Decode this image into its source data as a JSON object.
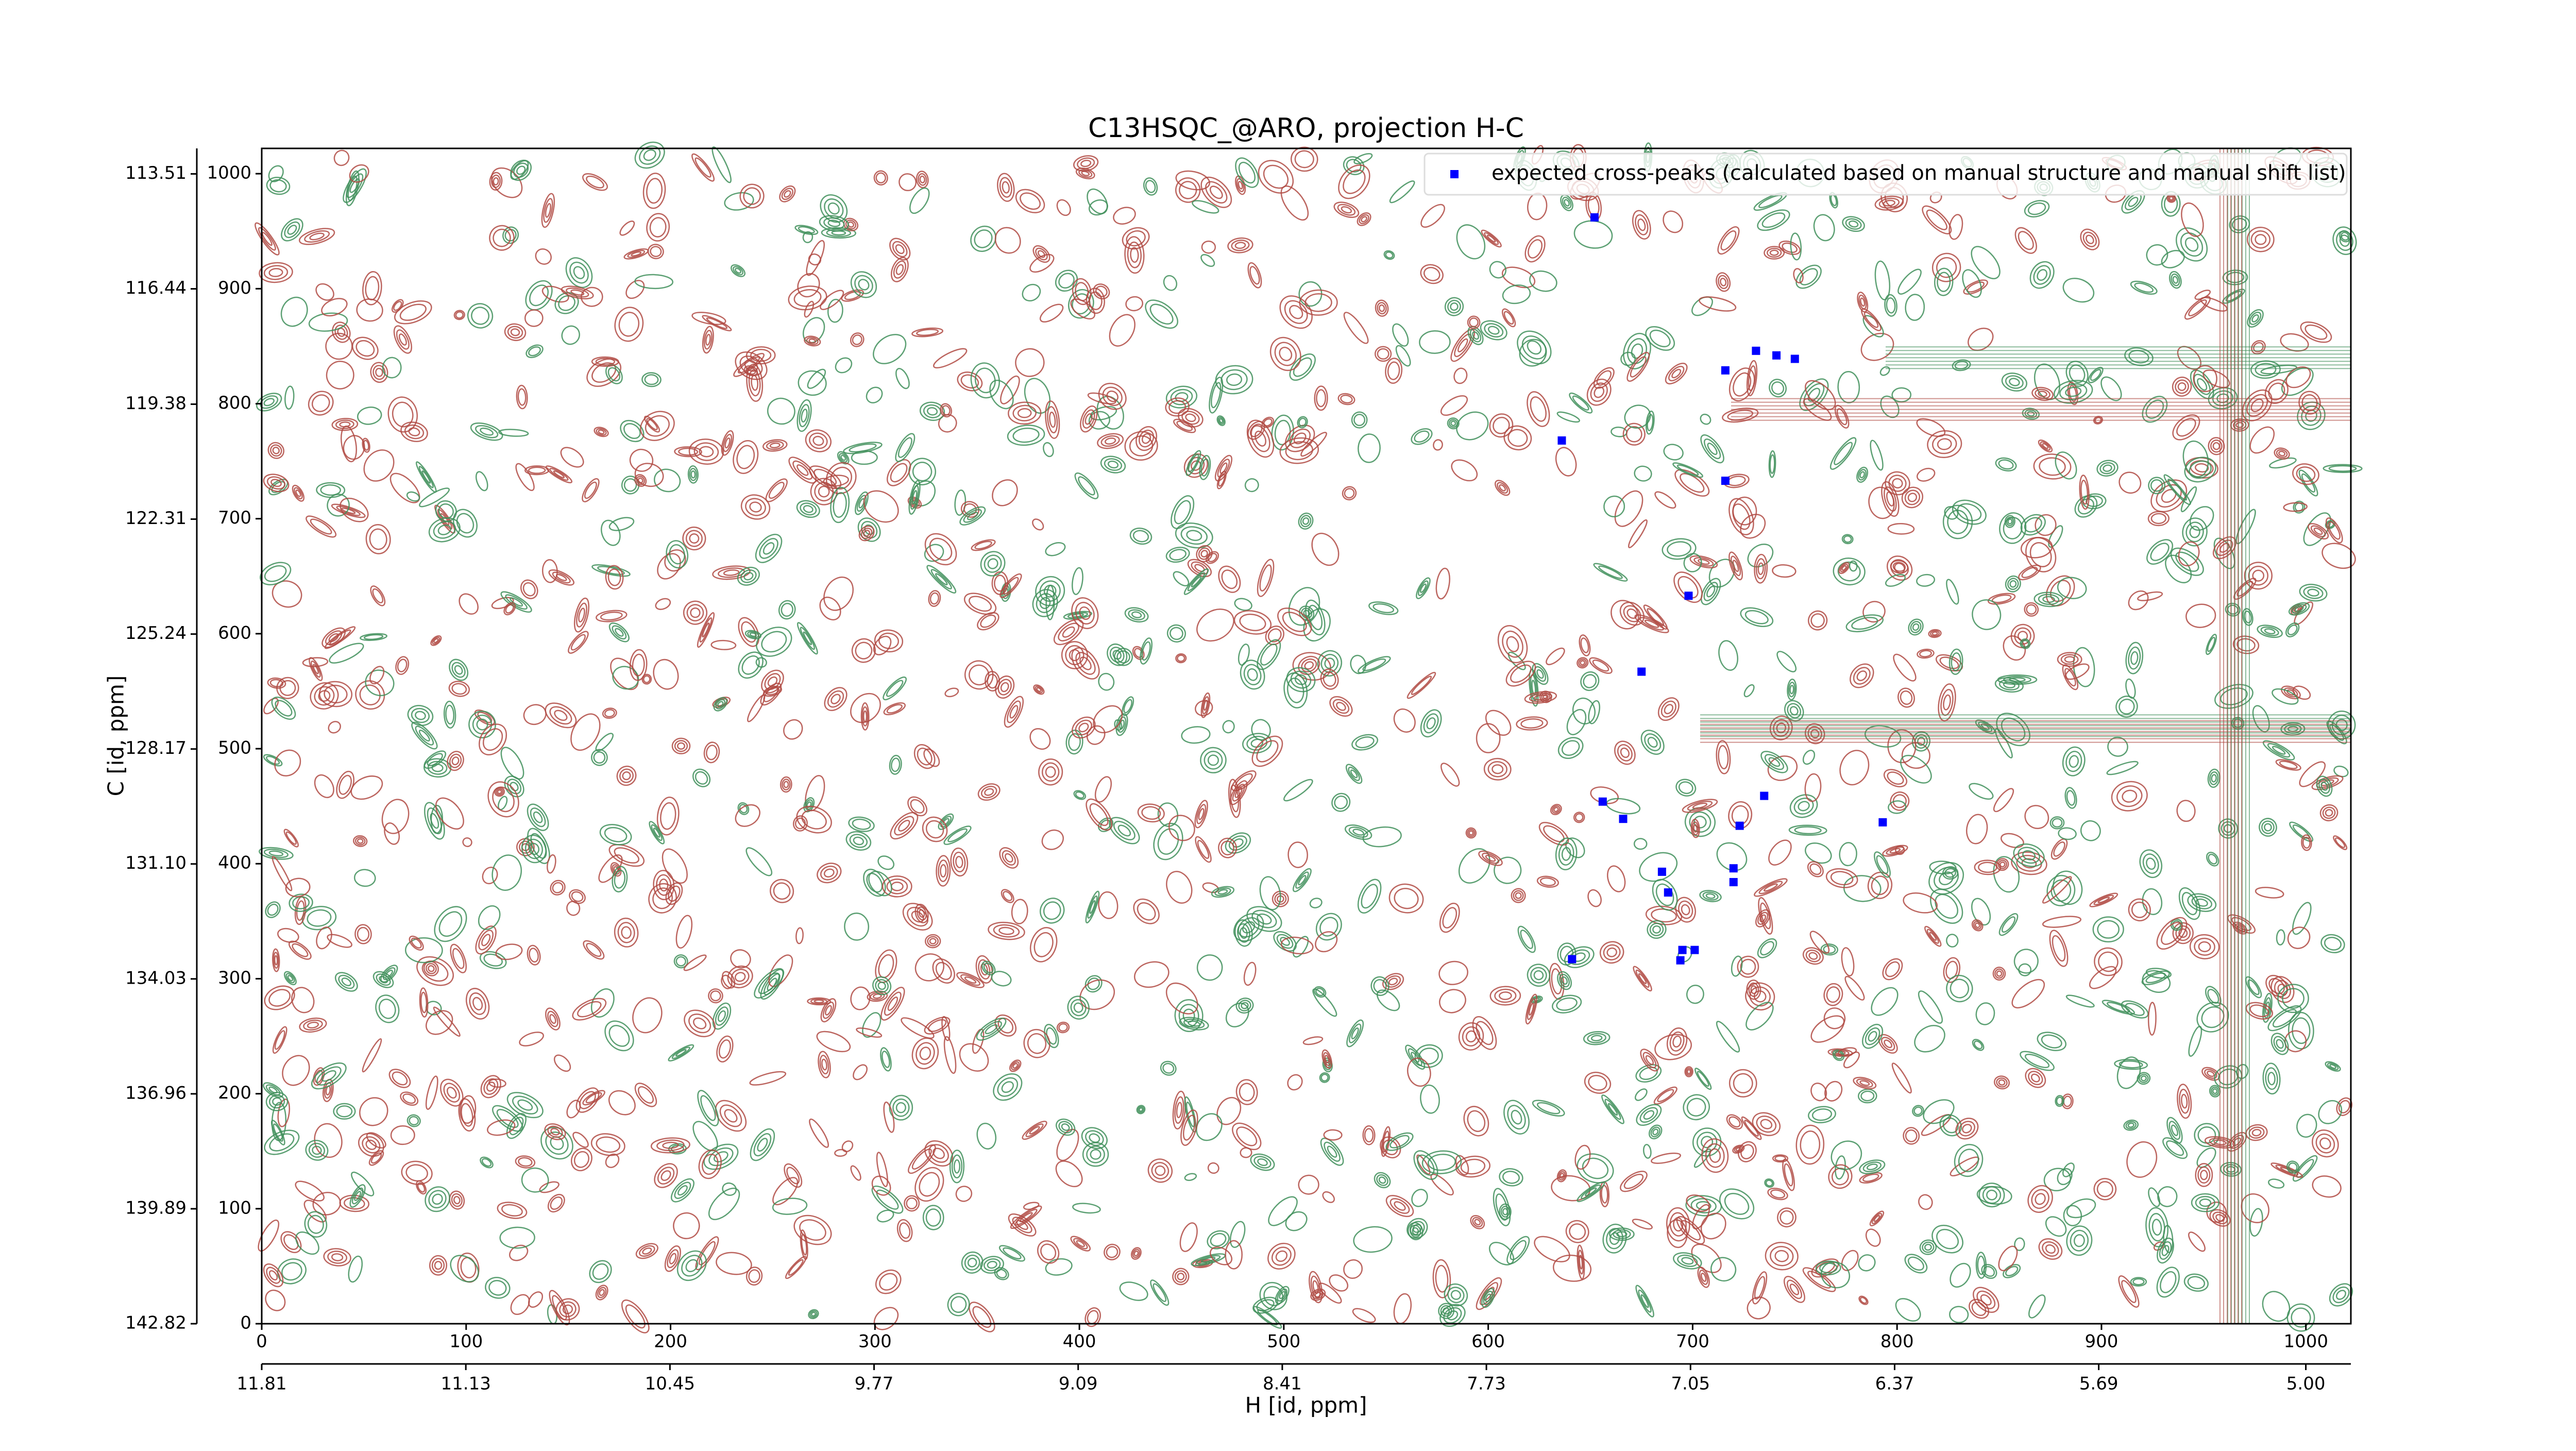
{
  "chart_data": {
    "type": "scatter",
    "title": "C13HSQC_@ARO, projection H-C",
    "xlabel": "H [id, ppm]",
    "ylabel": "C [id, ppm]",
    "x": [
      652,
      731,
      741,
      750,
      716,
      636,
      716,
      698,
      675,
      656,
      735,
      666,
      723,
      793,
      685,
      720,
      720,
      688,
      641,
      695,
      701,
      694
    ],
    "series": [
      {
        "name": "expected cross-peaks (calculated based on manual structure and manual shift list)",
        "color": "#0000ff",
        "values": [
          962,
          846,
          842,
          839,
          829,
          768,
          733,
          633,
          567,
          454,
          459,
          439,
          433,
          436,
          393,
          396,
          384,
          375,
          317,
          325,
          325,
          316
        ]
      }
    ],
    "xlim": [
      0,
      1022
    ],
    "xticks": [
      0,
      100,
      200,
      300,
      400,
      500,
      600,
      700,
      800,
      900,
      1000
    ],
    "ylim": [
      0,
      1022
    ],
    "yticks": [
      0,
      100,
      200,
      300,
      400,
      500,
      600,
      700,
      800,
      900,
      1000
    ],
    "x2lim": [
      11.81,
      4.85
    ],
    "x2ticks": [
      11.81,
      11.13,
      10.45,
      9.77,
      9.09,
      8.41,
      7.73,
      7.05,
      6.37,
      5.69,
      {
        "value": 5,
        "label": "5.00"
      }
    ],
    "y2lim": [
      142.82,
      112.86
    ],
    "y2ticks": [
      142.82,
      139.89,
      136.96,
      134.03,
      {
        "value": 131.1,
        "label": "131.10"
      },
      128.17,
      125.24,
      122.31,
      119.38,
      116.44,
      113.51
    ],
    "grid": false,
    "legend": "upper right"
  }
}
